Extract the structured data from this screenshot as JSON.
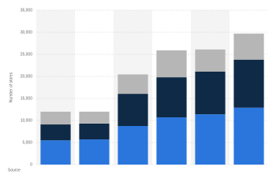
{
  "chart_data": {
    "type": "bar",
    "stacked": true,
    "y_label": "Number of stores",
    "source": "Source",
    "categories": [
      null,
      null,
      null,
      null,
      null,
      null
    ],
    "series": [
      {
        "color": "#2a76dd",
        "values": [
          5500,
          5700,
          8750,
          10700,
          11400,
          12900
        ]
      },
      {
        "color": "#0e2a47",
        "values": [
          3600,
          3600,
          7300,
          9100,
          9700,
          10900
        ]
      },
      {
        "color": "#b6b6b6",
        "values": [
          2900,
          2700,
          4400,
          6100,
          5000,
          5900
        ]
      }
    ],
    "ylim": [
      0,
      35000
    ],
    "yticks": [
      0,
      {
        "value": 5000,
        "label": "5,000"
      },
      {
        "value": 10000,
        "label": "10,000"
      },
      {
        "value": 15000,
        "label": "15,000"
      },
      {
        "value": 20000,
        "label": "20,000"
      },
      {
        "value": 25000,
        "label": "25,000"
      },
      {
        "value": 30000,
        "label": "30,000"
      },
      {
        "value": 35000,
        "label": "35,000"
      }
    ],
    "grid": true
  }
}
